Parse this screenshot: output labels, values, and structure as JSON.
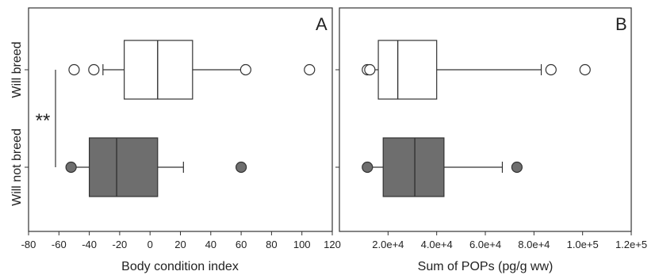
{
  "chart_data": [
    {
      "type": "boxplot",
      "panel_label": "A",
      "xlabel": "Body condition index",
      "ylabel": "",
      "xlim": [
        -80,
        120
      ],
      "x_ticks": [
        -80,
        -60,
        -40,
        -20,
        0,
        20,
        40,
        60,
        80,
        100,
        120
      ],
      "x_tick_labels": [
        "-80",
        "-60",
        "-40",
        "-20",
        "0",
        "20",
        "40",
        "60",
        "80",
        "100",
        "120"
      ],
      "categories": [
        "Will breed",
        "Will not breed"
      ],
      "boxes": [
        {
          "category": "Will breed",
          "whisker_low": -31,
          "q1": -17,
          "median": 5,
          "q3": 28,
          "whisker_high": 62,
          "outliers": [
            -50,
            -37,
            63,
            105
          ],
          "fill": "#ffffff"
        },
        {
          "category": "Will not breed",
          "whisker_low": -52,
          "q1": -40,
          "median": -22,
          "q3": 5,
          "whisker_high": 22,
          "outliers": [
            -52,
            60
          ],
          "fill": "#6e6e6e"
        }
      ],
      "annotation": {
        "text": "**"
      },
      "grid": false
    },
    {
      "type": "boxplot",
      "panel_label": "B",
      "xlabel": "Sum of POPs (pg/g ww)",
      "ylabel": "",
      "xlim": [
        0,
        120000
      ],
      "x_ticks": [
        20000,
        40000,
        60000,
        80000,
        100000,
        120000
      ],
      "x_tick_labels": [
        "2.0e+4",
        "4.0e+4",
        "6.0e+4",
        "8.0e+4",
        "1.0e+5",
        "1.2e+5"
      ],
      "categories": [
        "Will breed",
        "Will not breed"
      ],
      "boxes": [
        {
          "category": "Will breed",
          "whisker_low": 13000,
          "q1": 16000,
          "median": 24000,
          "q3": 40000,
          "whisker_high": 83000,
          "outliers": [
            11500,
            12500,
            87000,
            101000
          ],
          "fill": "#ffffff"
        },
        {
          "category": "Will not breed",
          "whisker_low": 12000,
          "q1": 18000,
          "median": 31000,
          "q3": 43000,
          "whisker_high": 67000,
          "outliers": [
            11500,
            73000
          ],
          "fill": "#6e6e6e"
        }
      ],
      "grid": false
    }
  ]
}
